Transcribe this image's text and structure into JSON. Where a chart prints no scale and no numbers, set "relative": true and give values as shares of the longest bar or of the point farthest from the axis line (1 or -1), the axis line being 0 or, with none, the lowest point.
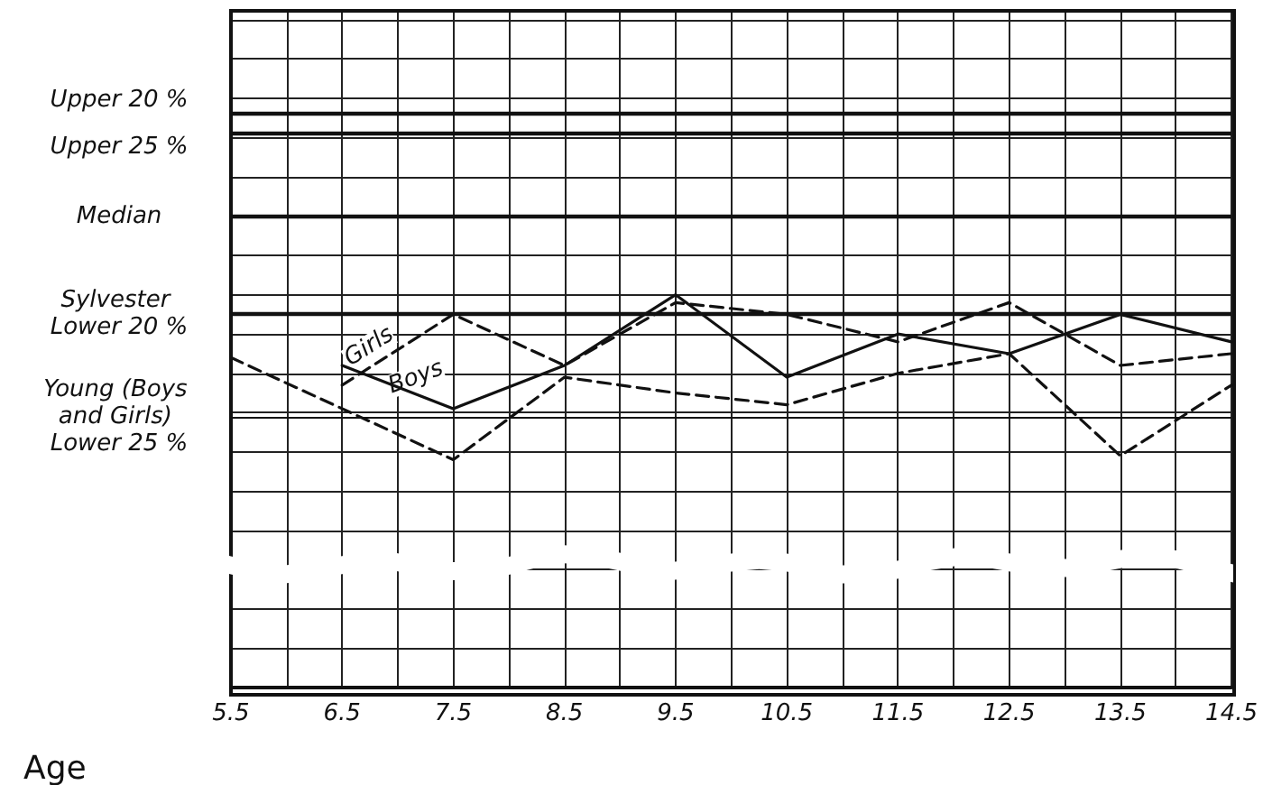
{
  "chart_data": {
    "type": "line",
    "xlabel": "Age",
    "relative": true,
    "x": [
      6.5,
      7.5,
      8.5,
      9.5,
      10.5,
      11.5,
      12.5,
      13.5,
      14.5
    ],
    "series": [
      {
        "name": "Boys",
        "color": "#111111",
        "line_style": "solid",
        "values": [
          0.82,
          0.71,
          0.82,
          1.0,
          0.79,
          0.9,
          0.85,
          0.95,
          0.88
        ]
      },
      {
        "name": "Girls",
        "color": "#111111",
        "line_style": "dashed",
        "values": [
          0.77,
          0.95,
          0.82,
          0.98,
          0.95,
          0.88,
          0.98,
          0.82,
          0.85
        ]
      },
      {
        "color": "#111111",
        "line_style": "dashed",
        "x": [
          5.5,
          7.5,
          8.5,
          9.5,
          10.5,
          11.5,
          12.5,
          13.5,
          14.5
        ],
        "values": [
          0.84,
          0.58,
          0.79,
          0.75,
          0.72,
          0.8,
          0.85,
          0.59,
          0.77
        ]
      }
    ],
    "xlim": [
      5.5,
      14.5
    ],
    "xticks": [
      5.5,
      {
        "value": 6,
        "label": null
      },
      6.5,
      {
        "value": 7,
        "label": null
      },
      7.5,
      {
        "value": 8,
        "label": null
      },
      8.5,
      {
        "value": 9,
        "label": null
      },
      9.5,
      {
        "value": 10,
        "label": null
      },
      10.5,
      {
        "value": 11,
        "label": null
      },
      11.5,
      {
        "value": 12,
        "label": null
      },
      12.5,
      {
        "value": 13,
        "label": null
      },
      13.5,
      {
        "value": 14,
        "label": null
      },
      14.5
    ],
    "ref_lines": [
      {
        "axis": "y",
        "value": 1.46,
        "label": "Upper 20 %"
      },
      {
        "axis": "y",
        "value": 1.41,
        "label": "Upper 25 %"
      },
      {
        "axis": "y",
        "value": 1.2,
        "label": "Median"
      },
      {
        "axis": "y",
        "value": 0.95,
        "label": "Sylvester Lower 20 %"
      },
      {
        "axis": "y",
        "value": 0.69,
        "label": "Young (Boys and Girls) Lower 25 %"
      }
    ],
    "grid": true,
    "marker": "none",
    "legend": false
  }
}
